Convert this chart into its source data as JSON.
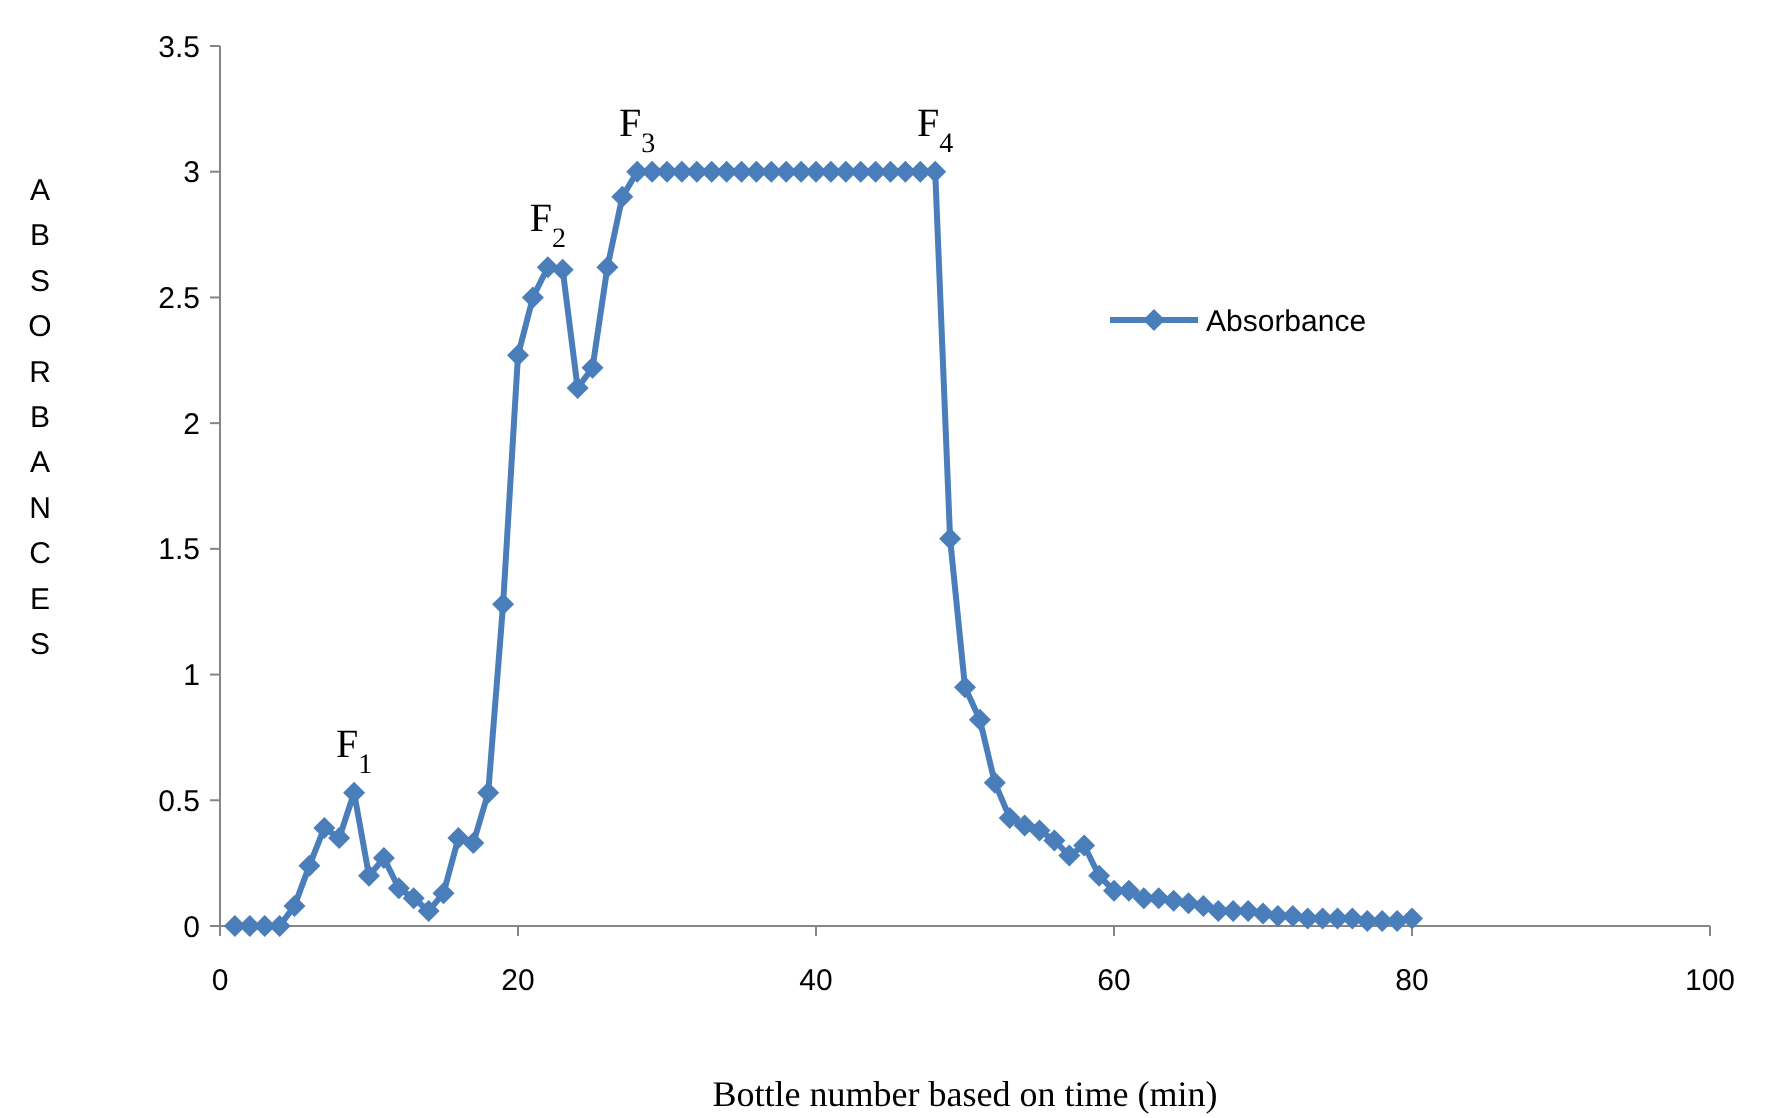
{
  "chart_data": {
    "type": "line",
    "xlabel": "Bottle number based on time (min)",
    "ylabel": "ABSORBANCES",
    "x": [
      1,
      2,
      3,
      4,
      5,
      6,
      7,
      8,
      9,
      10,
      11,
      12,
      13,
      14,
      15,
      16,
      17,
      18,
      19,
      20,
      21,
      22,
      23,
      24,
      25,
      26,
      27,
      28,
      29,
      30,
      31,
      32,
      33,
      34,
      35,
      36,
      37,
      38,
      39,
      40,
      41,
      42,
      43,
      44,
      45,
      46,
      47,
      48,
      49,
      50,
      51,
      52,
      53,
      54,
      55,
      56,
      57,
      58,
      59,
      60,
      61,
      62,
      63,
      64,
      65,
      66,
      67,
      68,
      69,
      70,
      71,
      72,
      73,
      74,
      75,
      76,
      77,
      78,
      79,
      80
    ],
    "series": [
      {
        "name": "Absorbance",
        "color": "#4a7ebb",
        "values": [
          0,
          0,
          0,
          0,
          0.08,
          0.24,
          0.39,
          0.35,
          0.53,
          0.2,
          0.27,
          0.15,
          0.11,
          0.06,
          0.13,
          0.35,
          0.33,
          0.53,
          1.28,
          2.27,
          2.5,
          2.62,
          2.61,
          2.14,
          2.22,
          2.62,
          2.9,
          3,
          3,
          3,
          3,
          3,
          3,
          3,
          3,
          3,
          3,
          3,
          3,
          3,
          3,
          3,
          3,
          3,
          3,
          3,
          3,
          3,
          1.54,
          0.95,
          0.82,
          0.57,
          0.43,
          0.4,
          0.38,
          0.34,
          0.28,
          0.32,
          0.2,
          0.14,
          0.14,
          0.11,
          0.11,
          0.1,
          0.09,
          0.08,
          0.06,
          0.06,
          0.06,
          0.05,
          0.04,
          0.04,
          0.03,
          0.03,
          0.03,
          0.03,
          0.02,
          0.02,
          0.02,
          0.03
        ]
      }
    ],
    "xlim": [
      0,
      100
    ],
    "xticks": [
      0,
      20,
      40,
      60,
      80,
      100
    ],
    "ylim": [
      0,
      3.5
    ],
    "yticks": [
      0,
      0.5,
      1,
      1.5,
      2,
      2.5,
      3,
      3.5
    ],
    "grid": false,
    "legend": "right",
    "marker": "diamond",
    "line_style": "solid",
    "annotations": [
      {
        "text": "F$_{1}$",
        "x": 9,
        "y": 0.53
      },
      {
        "text": "F$_{2}$",
        "x": 22,
        "y": 2.62
      },
      {
        "text": "F$_{3}$",
        "x": 28,
        "y": 3
      },
      {
        "text": "F$_{4}$",
        "x": 48,
        "y": 3
      }
    ]
  }
}
